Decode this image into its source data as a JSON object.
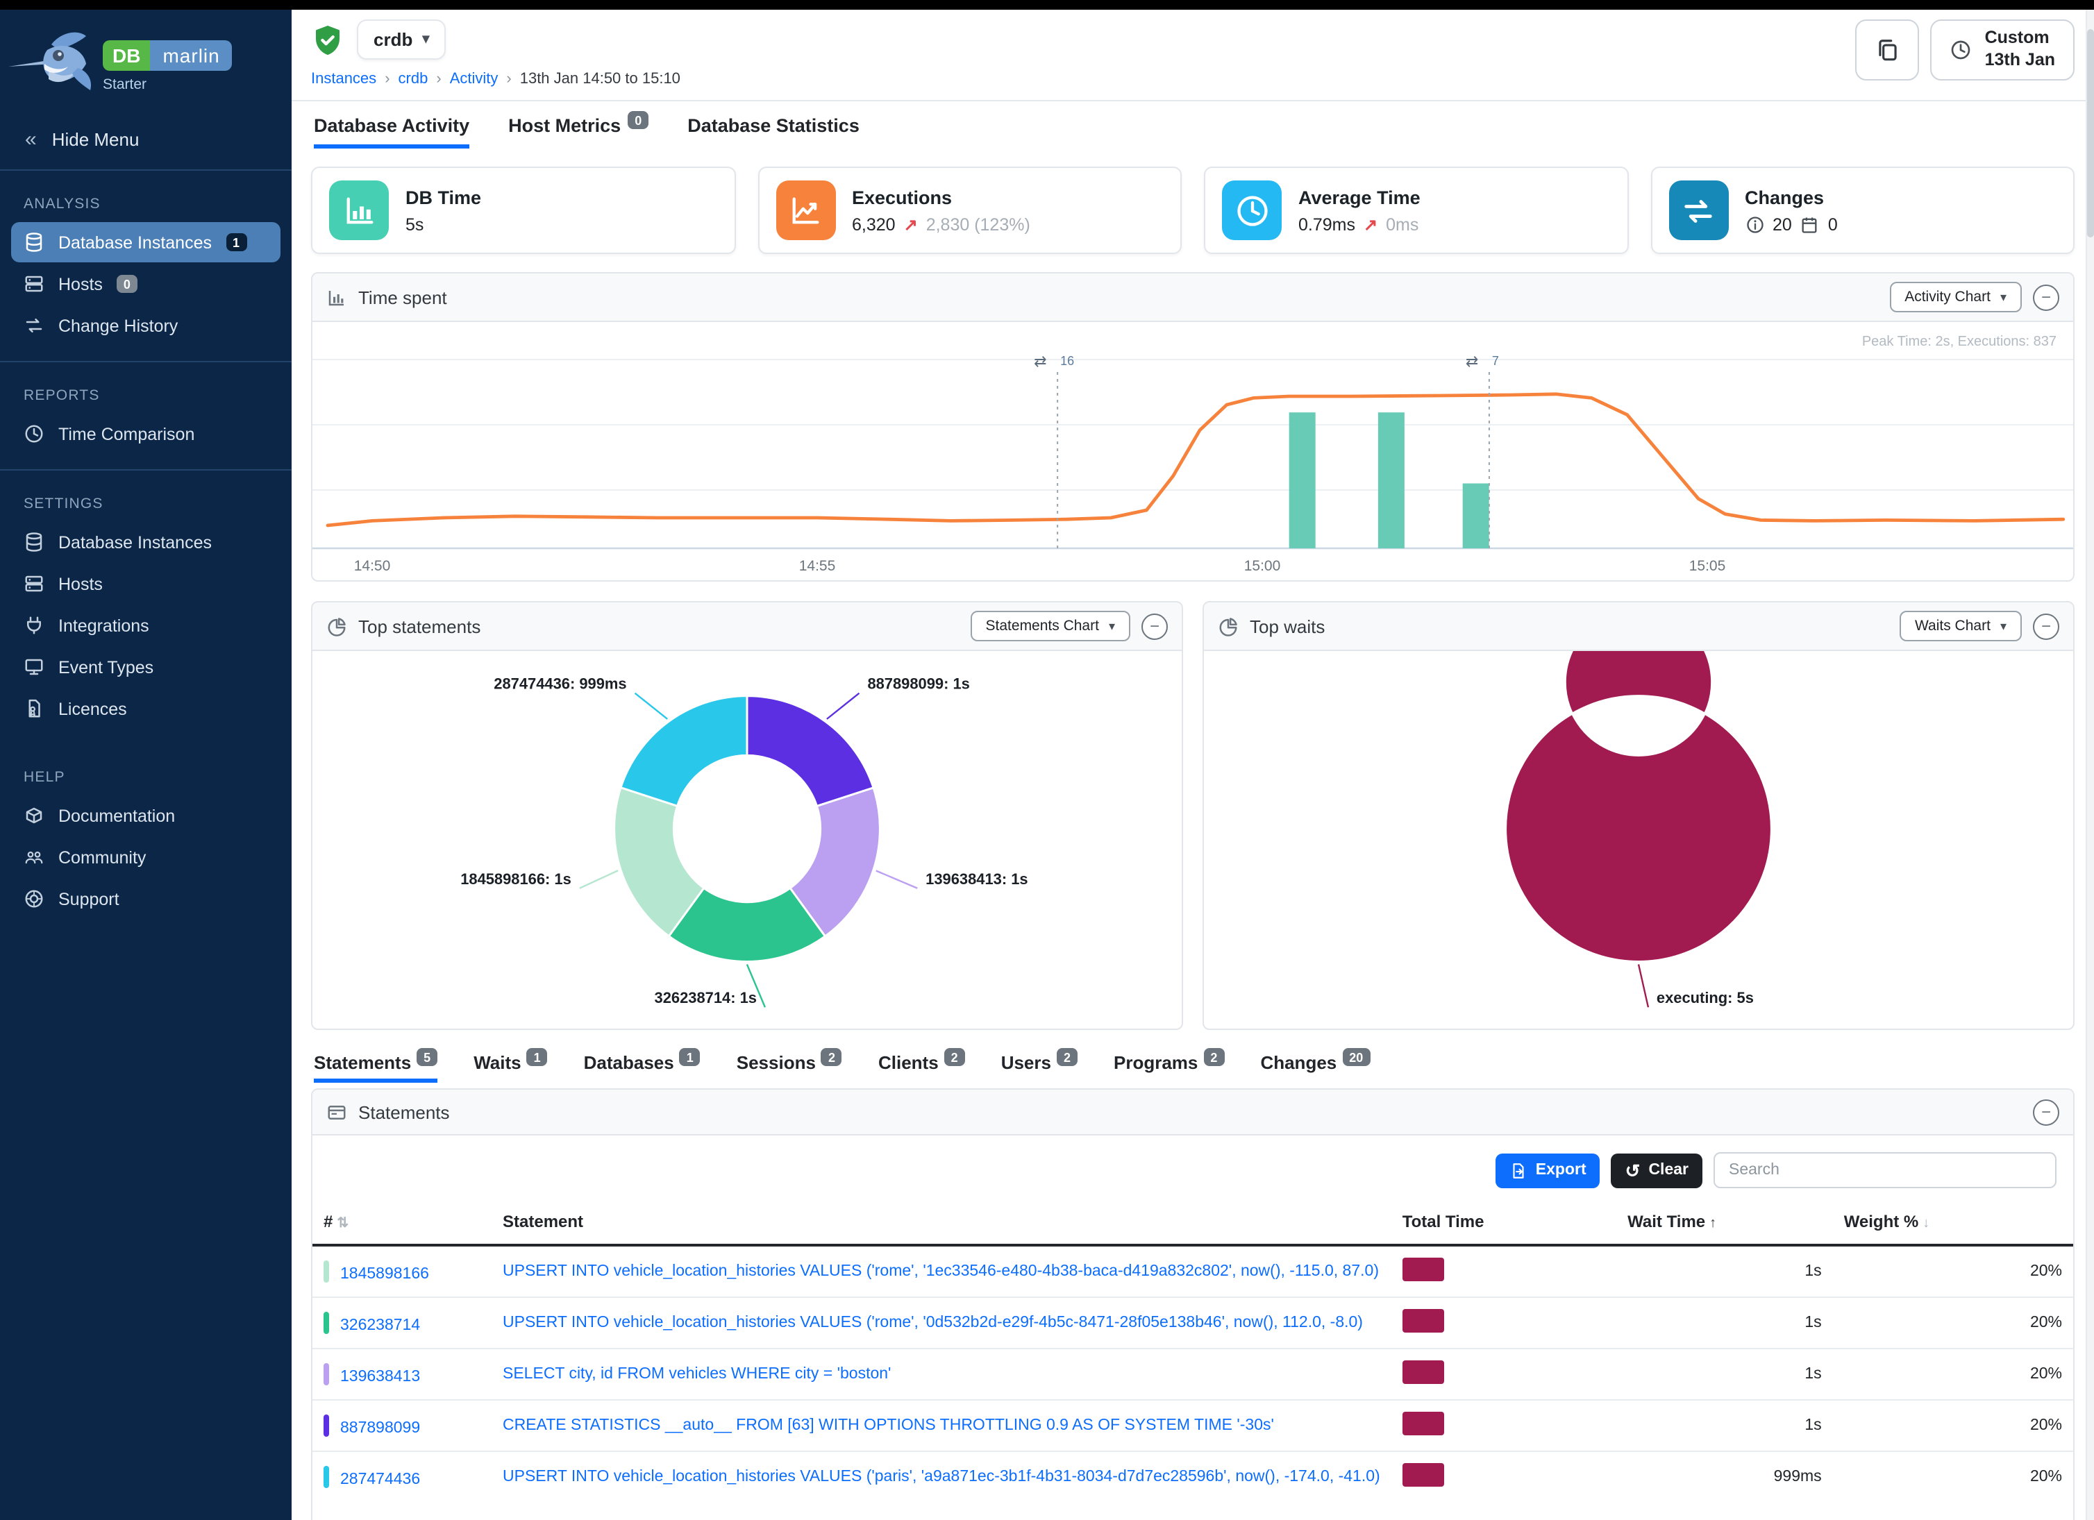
{
  "sidebar": {
    "logo": {
      "db": "DB",
      "marlin": "marlin",
      "edition": "Starter"
    },
    "hide_menu": "Hide Menu",
    "sections": [
      {
        "title": "ANALYSIS",
        "divider_after": true,
        "items": [
          {
            "label": "Database Instances",
            "icon": "database",
            "active": true,
            "badge": "1",
            "badge_variant": "dark"
          },
          {
            "label": "Hosts",
            "icon": "hosts",
            "badge": "0",
            "badge_variant": "gray"
          },
          {
            "label": "Change History",
            "icon": "change-history"
          }
        ]
      },
      {
        "title": "REPORTS",
        "divider_after": true,
        "items": [
          {
            "label": "Time Comparison",
            "icon": "time-comparison"
          }
        ]
      },
      {
        "title": "SETTINGS",
        "divider_after": false,
        "items": [
          {
            "label": "Database Instances",
            "icon": "database"
          },
          {
            "label": "Hosts",
            "icon": "hosts"
          },
          {
            "label": "Integrations",
            "icon": "integrations"
          },
          {
            "label": "Event Types",
            "icon": "event-types"
          },
          {
            "label": "Licences",
            "icon": "licences"
          }
        ]
      },
      {
        "title": "HELP",
        "divider_after": false,
        "items": [
          {
            "label": "Documentation",
            "icon": "documentation"
          },
          {
            "label": "Community",
            "icon": "community"
          },
          {
            "label": "Support",
            "icon": "support"
          }
        ]
      }
    ]
  },
  "header": {
    "instance_name": "crdb",
    "breadcrumb": [
      "Instances",
      "crdb",
      "Activity",
      "13th Jan 14:50 to 15:10"
    ],
    "time_button": {
      "line1": "Custom",
      "line2": "13th Jan"
    },
    "tabs": [
      {
        "label": "Database Activity",
        "active": true
      },
      {
        "label": "Host Metrics",
        "badge": "0"
      },
      {
        "label": "Database Statistics"
      }
    ]
  },
  "cards": [
    {
      "title": "DB Time",
      "value": "5s",
      "icon": "bar-chart",
      "color": "#47cfb4"
    },
    {
      "title": "Executions",
      "value": "6,320",
      "arrow": "↗",
      "delta": "2,830 (123%)",
      "icon": "line-chart",
      "color": "#f6823c"
    },
    {
      "title": "Average Time",
      "value": "0.79ms",
      "arrow": "↗",
      "delta": "0ms",
      "icon": "clock",
      "color": "#25b9f3"
    },
    {
      "title": "Changes",
      "counts": [
        {
          "icon": "info",
          "value": "20"
        },
        {
          "icon": "calendar",
          "value": "0"
        }
      ],
      "icon": "change-arrows",
      "color": "#1789b8"
    }
  ],
  "time_spent": {
    "title": "Time spent",
    "selector": "Activity Chart",
    "note": "Peak Time: 2s, Executions: 837",
    "chart_data": {
      "type": "line+bar",
      "x_ticks": [
        {
          "t": 0,
          "label": "14:50"
        },
        {
          "t": 5,
          "label": "14:55"
        },
        {
          "t": 10,
          "label": "15:00"
        },
        {
          "t": 15,
          "label": "15:05"
        }
      ],
      "x_domain_minutes": [
        -0.5,
        19
      ],
      "y_unit": "seconds",
      "line": {
        "name": "time",
        "color": "#f6823c",
        "points": [
          [
            -0.5,
            0.3
          ],
          [
            0,
            0.36
          ],
          [
            0.8,
            0.4
          ],
          [
            1.6,
            0.42
          ],
          [
            2.4,
            0.41
          ],
          [
            3.2,
            0.4
          ],
          [
            4,
            0.4
          ],
          [
            5,
            0.4
          ],
          [
            5.8,
            0.38
          ],
          [
            6.5,
            0.36
          ],
          [
            7.2,
            0.37
          ],
          [
            7.8,
            0.38
          ],
          [
            8.3,
            0.4
          ],
          [
            8.7,
            0.5
          ],
          [
            9.0,
            0.95
          ],
          [
            9.3,
            1.55
          ],
          [
            9.6,
            1.88
          ],
          [
            9.9,
            1.97
          ],
          [
            10.3,
            1.99
          ],
          [
            11,
            1.99
          ],
          [
            12,
            2.0
          ],
          [
            12.8,
            2.01
          ],
          [
            13.3,
            2.02
          ],
          [
            13.7,
            1.97
          ],
          [
            14.1,
            1.75
          ],
          [
            14.5,
            1.2
          ],
          [
            14.9,
            0.65
          ],
          [
            15.2,
            0.45
          ],
          [
            15.6,
            0.37
          ],
          [
            16.2,
            0.36
          ],
          [
            17,
            0.37
          ],
          [
            18,
            0.36
          ],
          [
            19,
            0.38
          ]
        ]
      },
      "bars": {
        "name": "executions",
        "color": "#68cbb5",
        "items": [
          {
            "t": 10.45,
            "value": 1.78
          },
          {
            "t": 11.45,
            "value": 1.78
          },
          {
            "t": 12.4,
            "value": 0.85
          }
        ]
      },
      "change_markers": [
        {
          "t": 7.7,
          "label": "16"
        },
        {
          "t": 12.55,
          "label": "7"
        }
      ]
    }
  },
  "top_statements": {
    "title": "Top statements",
    "selector": "Statements Chart",
    "chart_data": {
      "type": "pie",
      "segments": [
        {
          "id": "887898099",
          "time": "1s",
          "value": 1000,
          "color": "#5d2fe2",
          "label": "887898099: 1s",
          "label_x": 401,
          "label_y": 27,
          "anchor": "start"
        },
        {
          "id": "139638413",
          "time": "1s",
          "value": 1000,
          "color": "#bb9ff0",
          "label": "139638413: 1s",
          "label_x": 443,
          "label_y": 168,
          "anchor": "start"
        },
        {
          "id": "326238714",
          "time": "1s",
          "value": 1000,
          "color": "#2bc48e",
          "label": "326238714: 1s",
          "label_x": 321,
          "label_y": 254,
          "anchor": "end"
        },
        {
          "id": "1845898166",
          "time": "1s",
          "value": 1000,
          "color": "#b5e6d0",
          "label": "1845898166: 1s",
          "label_x": 187,
          "label_y": 168,
          "anchor": "end"
        },
        {
          "id": "287474436",
          "time": "999ms",
          "value": 999,
          "color": "#29c7e9",
          "label": "287474436: 999ms",
          "label_x": 227,
          "label_y": 27,
          "anchor": "end"
        }
      ]
    }
  },
  "top_waits": {
    "title": "Top waits",
    "selector": "Waits Chart",
    "chart_data": {
      "type": "pie",
      "segments": [
        {
          "id": "executing",
          "time": "5s",
          "value": 5000,
          "color": "#a11b51",
          "label": "executing: 5s",
          "label_x": 327,
          "label_y": 254,
          "anchor": "start"
        }
      ]
    }
  },
  "detail_tabs": [
    {
      "label": "Statements",
      "badge": "5",
      "active": true
    },
    {
      "label": "Waits",
      "badge": "1"
    },
    {
      "label": "Databases",
      "badge": "1"
    },
    {
      "label": "Sessions",
      "badge": "2"
    },
    {
      "label": "Clients",
      "badge": "2"
    },
    {
      "label": "Users",
      "badge": "2"
    },
    {
      "label": "Programs",
      "badge": "2"
    },
    {
      "label": "Changes",
      "badge": "20"
    }
  ],
  "statements_panel": {
    "title": "Statements",
    "export_label": "Export",
    "clear_label": "Clear",
    "search_placeholder": "Search",
    "columns": {
      "id": "#",
      "statement": "Statement",
      "total": "Total Time",
      "wait": "Wait Time",
      "weight": "Weight %"
    },
    "bar_color": "#a11b51",
    "rows": [
      {
        "id": "1845898166",
        "color": "#b5e6d0",
        "statement": "UPSERT INTO vehicle_location_histories VALUES ('rome', '1ec33546-e480-4b38-baca-d419a832c802', now(), -115.0, 87.0)",
        "total_ms": 1000,
        "wait": "1s",
        "weight": "20%"
      },
      {
        "id": "326238714",
        "color": "#2bc48e",
        "statement": "UPSERT INTO vehicle_location_histories VALUES ('rome', '0d532b2d-e29f-4b5c-8471-28f05e138b46', now(), 112.0, -8.0)",
        "total_ms": 1000,
        "wait": "1s",
        "weight": "20%"
      },
      {
        "id": "139638413",
        "color": "#bb9ff0",
        "statement": "SELECT city, id FROM vehicles WHERE city = 'boston'",
        "total_ms": 1000,
        "wait": "1s",
        "weight": "20%"
      },
      {
        "id": "887898099",
        "color": "#5d2fe2",
        "statement": "CREATE STATISTICS __auto__ FROM [63] WITH OPTIONS THROTTLING 0.9 AS OF SYSTEM TIME '-30s'",
        "total_ms": 1000,
        "wait": "1s",
        "weight": "20%"
      },
      {
        "id": "287474436",
        "color": "#29c7e9",
        "statement": "UPSERT INTO vehicle_location_histories VALUES ('paris', 'a9a871ec-3b1f-4b31-8034-d7d7ec28596b', now(), -174.0, -41.0)",
        "total_ms": 999,
        "wait": "999ms",
        "weight": "20%"
      }
    ]
  }
}
